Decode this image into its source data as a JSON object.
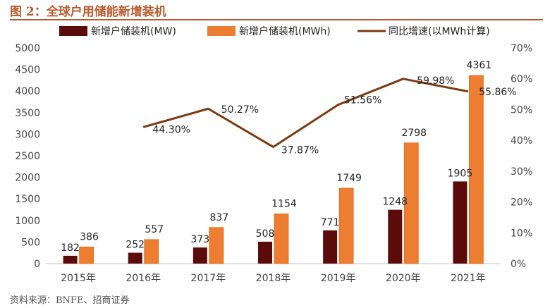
{
  "figure_title": "图 2：全球户用储能新增装机",
  "source": "资料来源：BNFE、招商证券",
  "colors": {
    "accent": "#b85a2c",
    "mw": "#5c0b0b",
    "mwh": "#ed7d31",
    "growth": "#7b3a10"
  },
  "chart_data": {
    "type": "bar",
    "title": "",
    "categories": [
      "2015年",
      "2016年",
      "2017年",
      "2018年",
      "2019年",
      "2020年",
      "2021年"
    ],
    "series": [
      {
        "name": "新增户储装机(MW)",
        "type": "bar",
        "axis": "left",
        "values": [
          182,
          252,
          373,
          508,
          771,
          1248,
          1905
        ]
      },
      {
        "name": "新增户储装机(MWh)",
        "type": "bar",
        "axis": "left",
        "values": [
          386,
          557,
          837,
          1154,
          1749,
          2798,
          4361
        ]
      },
      {
        "name": "同比增速(以MWh计算)",
        "type": "line",
        "axis": "right",
        "values": [
          null,
          44.3,
          50.27,
          37.87,
          51.56,
          59.98,
          55.86
        ],
        "labels": [
          "",
          "44.30%",
          "50.27%",
          "37.87%",
          "51.56%",
          "59.98%",
          "55.86%"
        ]
      }
    ],
    "left_axis": {
      "ylim": [
        0,
        5000
      ],
      "ticks": [
        0,
        500,
        1000,
        1500,
        2000,
        2500,
        3000,
        3500,
        4000,
        4500,
        5000
      ]
    },
    "right_axis": {
      "ylim": [
        0,
        70
      ],
      "ticks": [
        "0%",
        "10%",
        "20%",
        "30%",
        "40%",
        "50%",
        "60%",
        "70%"
      ]
    },
    "legend_position": "top",
    "grid": false
  }
}
